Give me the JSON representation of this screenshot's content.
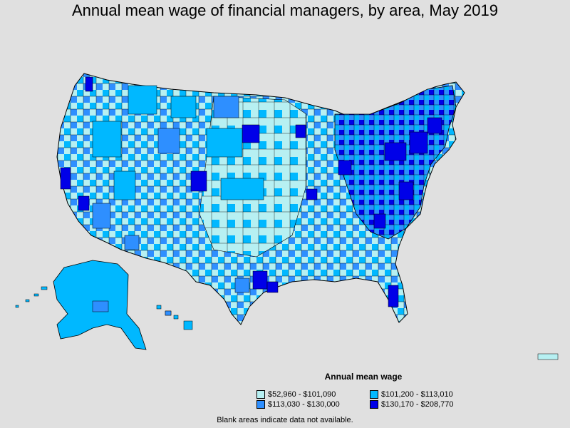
{
  "title": "Annual mean wage of financial managers, by area, May 2019",
  "legend": {
    "title": "Annual mean wage",
    "items": [
      {
        "label": "$52,960 - $101,090",
        "color": "#b7f0f2"
      },
      {
        "label": "$101,200 - $113,010",
        "color": "#00b8ff"
      },
      {
        "label": "$113,030 - $130,000",
        "color": "#2e8fff"
      },
      {
        "label": "$130,170 - $208,770",
        "color": "#0000e8"
      }
    ]
  },
  "footnote": "Blank areas indicate data not available.",
  "colors": {
    "background": "#e0e0e0",
    "border": "#000000"
  }
}
